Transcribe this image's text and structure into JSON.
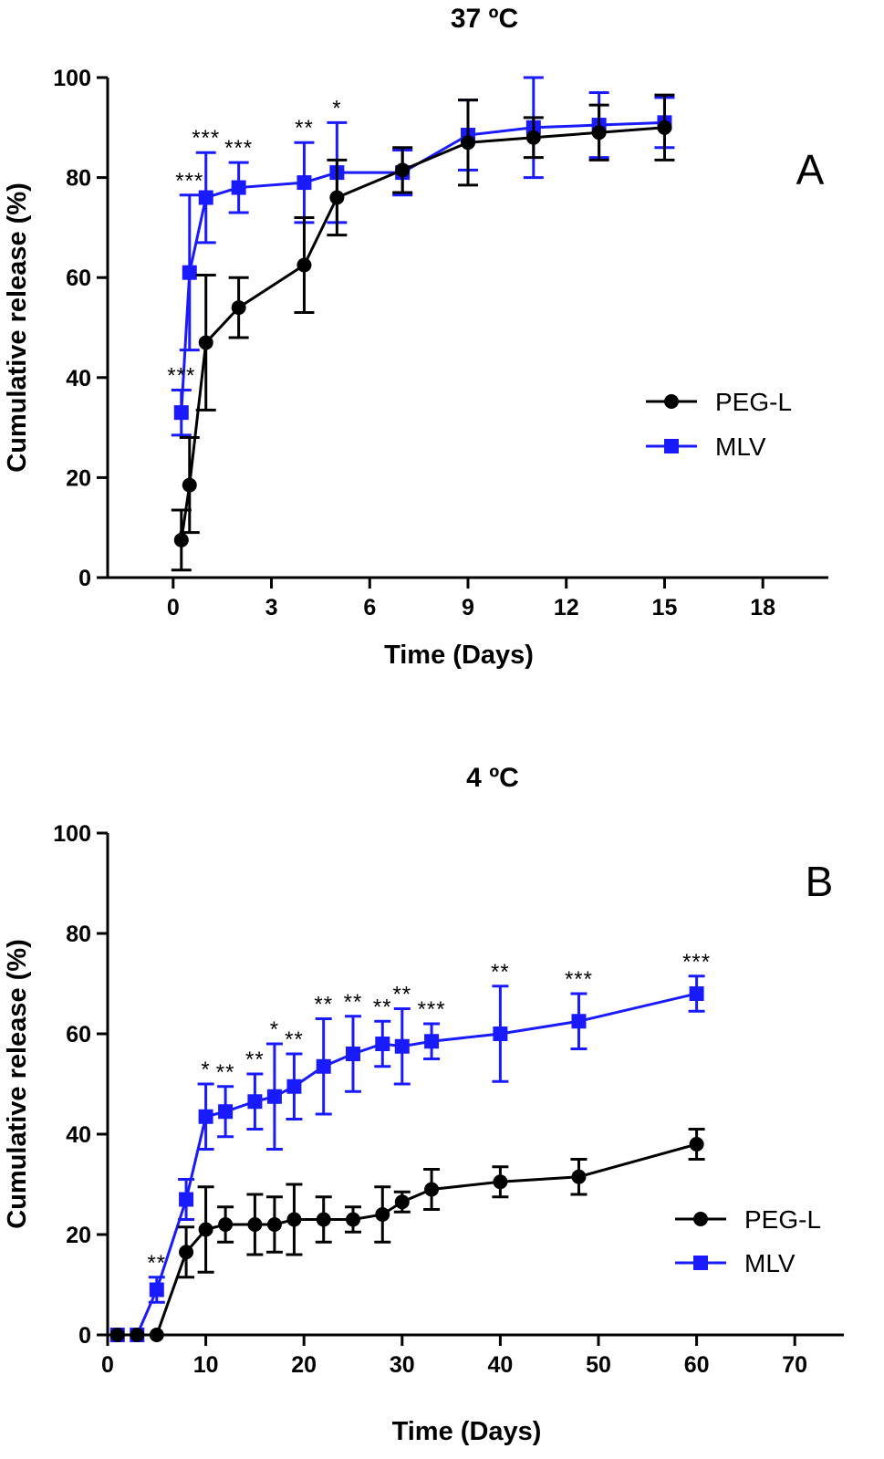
{
  "chart_data": [
    {
      "type": "line",
      "title": "37 ºC",
      "panel_label": "A",
      "xlabel": "Time (Days)",
      "ylabel": "Cumulative release (%)",
      "xlim": [
        -2,
        20
      ],
      "ylim": [
        0,
        100
      ],
      "xticks": [
        0,
        3,
        6,
        9,
        12,
        15,
        18
      ],
      "yticks": [
        0,
        20,
        40,
        60,
        80,
        100
      ],
      "legend_position": "center-right",
      "series": [
        {
          "name": "PEG-L",
          "color": "#000000",
          "marker": "circle",
          "x": [
            0.25,
            0.5,
            1,
            2,
            4,
            5,
            7,
            9,
            11,
            13,
            15
          ],
          "y": [
            7.5,
            18.5,
            47,
            54,
            62.5,
            76,
            81.5,
            87,
            88,
            89,
            90
          ],
          "err": [
            6,
            9.5,
            13.5,
            6,
            9.5,
            7.5,
            4.5,
            8.5,
            4,
            5.5,
            6.5
          ]
        },
        {
          "name": "MLV",
          "color": "#1a1aff",
          "marker": "square",
          "x": [
            0.25,
            0.5,
            1,
            2,
            4,
            5,
            7,
            9,
            11,
            13,
            15
          ],
          "y": [
            33,
            61,
            76,
            78,
            79,
            81,
            81,
            88.5,
            90,
            90.5,
            91
          ],
          "err": [
            4.5,
            15.5,
            9,
            5,
            8,
            10,
            4.5,
            7,
            10,
            6.5,
            5
          ]
        }
      ],
      "annotations": [
        {
          "x": 0.25,
          "text": "***"
        },
        {
          "x": 0.5,
          "text": "***"
        },
        {
          "x": 1,
          "text": "***"
        },
        {
          "x": 2,
          "text": "***"
        },
        {
          "x": 4,
          "text": "**"
        },
        {
          "x": 5,
          "text": "*"
        }
      ]
    },
    {
      "type": "line",
      "title": "4 ºC",
      "panel_label": "B",
      "xlabel": "Time (Days)",
      "ylabel": "Cumulative release (%)",
      "xlim": [
        0,
        75
      ],
      "ylim": [
        0,
        100
      ],
      "xticks": [
        0,
        10,
        20,
        30,
        40,
        50,
        60,
        70
      ],
      "yticks": [
        0,
        20,
        40,
        60,
        80,
        100
      ],
      "legend_position": "bottom-right",
      "series": [
        {
          "name": "PEG-L",
          "color": "#000000",
          "marker": "circle",
          "x": [
            1,
            3,
            5,
            8,
            10,
            12,
            15,
            17,
            19,
            22,
            25,
            28,
            30,
            33,
            40,
            48,
            60
          ],
          "y": [
            0,
            0,
            0,
            16.5,
            21,
            22,
            22,
            22,
            23,
            23,
            23,
            24,
            26.5,
            29,
            30.5,
            31.5,
            38
          ],
          "err": [
            0,
            0,
            0,
            5,
            8.5,
            3.5,
            6,
            5.5,
            7,
            4.5,
            2.5,
            5.5,
            2,
            4,
            3,
            3.5,
            3
          ]
        },
        {
          "name": "MLV",
          "color": "#1a1aff",
          "marker": "square",
          "x": [
            1,
            3,
            5,
            8,
            10,
            12,
            15,
            17,
            19,
            22,
            25,
            28,
            30,
            33,
            40,
            48,
            60
          ],
          "y": [
            0,
            0,
            9,
            27,
            43.5,
            44.5,
            46.5,
            47.5,
            49.5,
            53.5,
            56,
            58,
            57.5,
            58.5,
            60,
            62.5,
            68
          ],
          "err": [
            0,
            0,
            2.5,
            4,
            6.5,
            5,
            5.5,
            10.5,
            6.5,
            9.5,
            7.5,
            4.5,
            7.5,
            3.5,
            9.5,
            5.5,
            3.5
          ]
        }
      ],
      "annotations": [
        {
          "x": 5,
          "text": "**"
        },
        {
          "x": 10,
          "text": "*"
        },
        {
          "x": 12,
          "text": "**"
        },
        {
          "x": 15,
          "text": "**"
        },
        {
          "x": 17,
          "text": "*"
        },
        {
          "x": 19,
          "text": "**"
        },
        {
          "x": 22,
          "text": "**"
        },
        {
          "x": 25,
          "text": "**"
        },
        {
          "x": 28,
          "text": "**"
        },
        {
          "x": 30,
          "text": "**"
        },
        {
          "x": 33,
          "text": "***"
        },
        {
          "x": 40,
          "text": "**"
        },
        {
          "x": 48,
          "text": "***"
        },
        {
          "x": 60,
          "text": "***"
        }
      ]
    }
  ]
}
